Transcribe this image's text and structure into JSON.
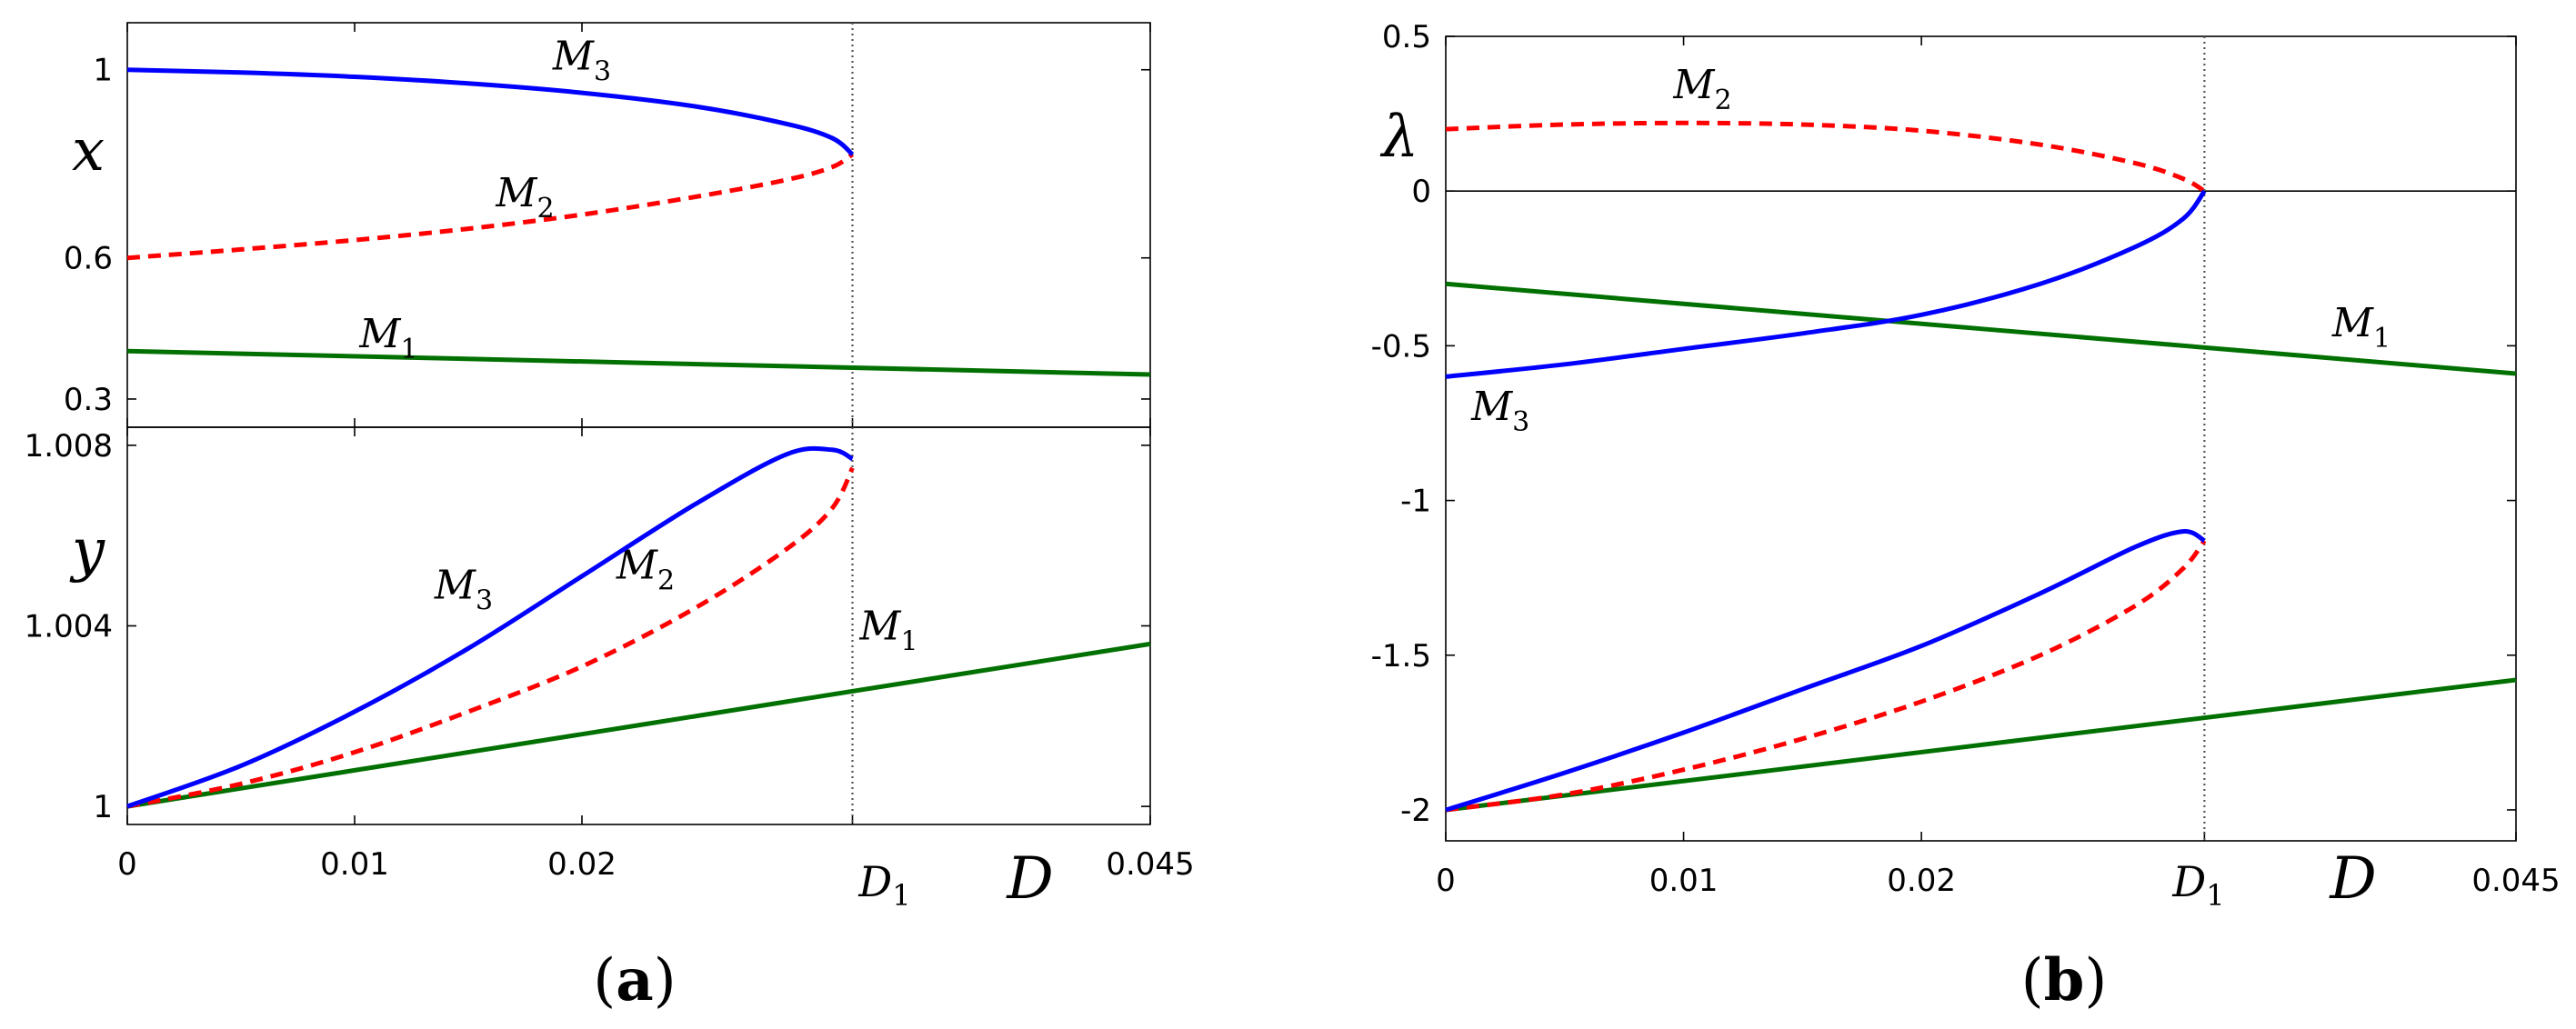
{
  "figure": {
    "panel_a_label": {
      "open": "(",
      "letter": "a",
      "close": ")"
    },
    "panel_b_label": {
      "open": "(",
      "letter": "b",
      "close": ")"
    },
    "x_axis_symbol": "D",
    "d1_label": {
      "main": "D",
      "sub": "1"
    }
  },
  "colors": {
    "M1": "#007000",
    "M2": "#ff0000",
    "M3": "#0000ff"
  },
  "chart_data": [
    {
      "type": "line",
      "panel": "a-top",
      "ylabel": "x",
      "xlim": [
        0,
        0.045
      ],
      "ylim": [
        0.24,
        1.1
      ],
      "xticks": [
        "0",
        "0.01",
        "0.02",
        "0.045"
      ],
      "xtick_values": [
        0,
        0.01,
        0.02,
        0.045
      ],
      "yticks": [
        "0.3",
        "0.6",
        "1"
      ],
      "ytick_values": [
        0.3,
        0.6,
        1.0
      ],
      "bifurcation_D1": 0.0319,
      "series": [
        {
          "name": "M1",
          "sub": "1",
          "style": "solid",
          "color": "#007000",
          "x": [
            0,
            0.045
          ],
          "y": [
            0.402,
            0.352
          ],
          "label_at": [
            0.0115,
            0.41
          ]
        },
        {
          "name": "M2",
          "sub": "2",
          "style": "dashed",
          "color": "#ff0000",
          "x": [
            0,
            0.005,
            0.01,
            0.015,
            0.02,
            0.025,
            0.029,
            0.031,
            0.0319
          ],
          "y": [
            0.6,
            0.618,
            0.638,
            0.662,
            0.692,
            0.73,
            0.766,
            0.793,
            0.82
          ],
          "label_at": [
            0.0175,
            0.71
          ]
        },
        {
          "name": "M3",
          "sub": "3",
          "style": "solid",
          "color": "#0000ff",
          "x": [
            0,
            0.005,
            0.01,
            0.015,
            0.02,
            0.025,
            0.029,
            0.031,
            0.0319
          ],
          "y": [
            1.0,
            0.994,
            0.985,
            0.971,
            0.951,
            0.922,
            0.885,
            0.855,
            0.82
          ],
          "label_at": [
            0.02,
            1.0
          ]
        }
      ]
    },
    {
      "type": "line",
      "panel": "a-bottom",
      "ylabel": "y",
      "xlim": [
        0,
        0.045
      ],
      "ylim": [
        0.9996,
        1.0084
      ],
      "xticks": [
        "0",
        "0.01",
        "0.02",
        "0.045"
      ],
      "xtick_values": [
        0,
        0.01,
        0.02,
        0.045
      ],
      "yticks": [
        "1",
        "1.004",
        "1.008"
      ],
      "ytick_values": [
        1.0,
        1.004,
        1.008
      ],
      "bifurcation_D1": 0.0319,
      "series": [
        {
          "name": "M1",
          "sub": "1",
          "style": "solid",
          "color": "#007000",
          "x": [
            0,
            0.045
          ],
          "y": [
            1.0,
            1.0036
          ],
          "label_at": [
            0.0335,
            1.0037
          ]
        },
        {
          "name": "M2",
          "sub": "2",
          "style": "dashed",
          "color": "#ff0000",
          "x": [
            0,
            0.005,
            0.01,
            0.015,
            0.02,
            0.025,
            0.029,
            0.031,
            0.0319
          ],
          "y": [
            1.0,
            1.0005,
            1.0012,
            1.0021,
            1.0031,
            1.0044,
            1.0057,
            1.0066,
            1.0075
          ],
          "label_at": [
            0.0228,
            1.00505
          ]
        },
        {
          "name": "M3",
          "sub": "3",
          "style": "solid",
          "color": "#0000ff",
          "x": [
            0,
            0.005,
            0.01,
            0.015,
            0.02,
            0.025,
            0.029,
            0.031,
            0.0319
          ],
          "y": [
            1.0,
            1.0009,
            1.0021,
            1.0035,
            1.0051,
            1.0067,
            1.0078,
            1.0079,
            1.0077
          ],
          "label_at": [
            0.0148,
            1.0046
          ]
        }
      ]
    },
    {
      "type": "line",
      "panel": "b",
      "ylabel": "λ",
      "xlim": [
        0,
        0.045
      ],
      "ylim": [
        -2.1,
        0.5
      ],
      "xticks": [
        "0",
        "0.01",
        "0.02",
        "0.045"
      ],
      "xtick_values": [
        0,
        0.01,
        0.02,
        0.045
      ],
      "yticks": [
        "-2",
        "-1.5",
        "-1",
        "-0.5",
        "0",
        "0.5"
      ],
      "ytick_values": [
        -2,
        -1.5,
        -1,
        -0.5,
        0,
        0.5
      ],
      "bifurcation_D1": 0.0319,
      "zero_line": 0,
      "series": [
        {
          "name": "M1",
          "sub": "1",
          "style": "solid",
          "color": "#007000",
          "x": [
            0,
            0.045
          ],
          "y": [
            -0.3,
            -0.59
          ],
          "label_at": [
            0.0385,
            -0.47
          ]
        },
        {
          "name": "M1-lower",
          "style": "solid",
          "color": "#007000",
          "x": [
            0,
            0.045
          ],
          "y": [
            -2.0,
            -1.58
          ]
        },
        {
          "name": "M2",
          "sub": "2",
          "style": "dashed",
          "color": "#ff0000",
          "x": [
            0,
            0.005,
            0.01,
            0.015,
            0.02,
            0.025,
            0.029,
            0.031,
            0.0319
          ],
          "y": [
            0.2,
            0.215,
            0.22,
            0.215,
            0.195,
            0.15,
            0.09,
            0.04,
            0.0
          ],
          "label_at": [
            0.0108,
            0.3
          ]
        },
        {
          "name": "M2-lower",
          "style": "dashed",
          "color": "#ff0000",
          "x": [
            0,
            0.005,
            0.01,
            0.015,
            0.02,
            0.025,
            0.029,
            0.031,
            0.0319
          ],
          "y": [
            -2.0,
            -1.95,
            -1.87,
            -1.77,
            -1.65,
            -1.5,
            -1.34,
            -1.22,
            -1.13
          ]
        },
        {
          "name": "M3",
          "sub": "3",
          "style": "solid",
          "color": "#0000ff",
          "x": [
            0,
            0.005,
            0.01,
            0.015,
            0.02,
            0.025,
            0.029,
            0.031,
            0.0319
          ],
          "y": [
            -0.6,
            -0.56,
            -0.51,
            -0.46,
            -0.4,
            -0.3,
            -0.18,
            -0.09,
            0.0
          ],
          "label_at": [
            0.0023,
            -0.74
          ]
        },
        {
          "name": "M3-lower",
          "style": "solid",
          "color": "#0000ff",
          "x": [
            0,
            0.005,
            0.01,
            0.015,
            0.02,
            0.025,
            0.029,
            0.031,
            0.0319
          ],
          "y": [
            -2.0,
            -1.88,
            -1.75,
            -1.61,
            -1.47,
            -1.3,
            -1.15,
            -1.1,
            -1.13
          ]
        }
      ]
    }
  ]
}
